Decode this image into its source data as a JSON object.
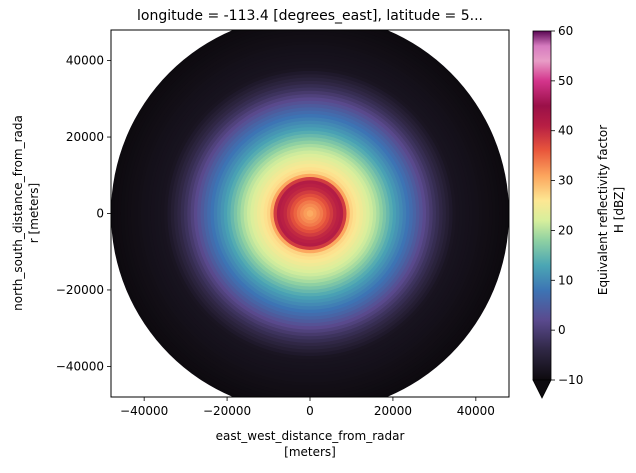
{
  "chart_data": {
    "type": "heatmap",
    "title": "longitude = -113.4 [degrees_east], latitude = 5...",
    "xlabel_line1": "east_west_distance_from_radar",
    "xlabel_line2": "[meters]",
    "ylabel_line1": "north_south_distance_from_rada",
    "ylabel_line2": "r [meters]",
    "xlim": [
      -48000,
      48000
    ],
    "ylim": [
      -48000,
      48000
    ],
    "xticks": [
      -40000,
      -20000,
      0,
      20000,
      40000
    ],
    "xtick_labels": [
      "−40000",
      "−20000",
      "0",
      "20000",
      "40000"
    ],
    "yticks": [
      -40000,
      -20000,
      0,
      20000,
      40000
    ],
    "ytick_labels": [
      "−40000",
      "−20000",
      "0",
      "20000",
      "40000"
    ],
    "grid": false,
    "radar_range_m": 48000,
    "field": {
      "description": "approximate reflectivity field (dBZ) sampled on polar rings",
      "rings": [
        {
          "r_m": 0,
          "dbz": 30
        },
        {
          "r_m": 3000,
          "dbz": 34
        },
        {
          "r_m": 6000,
          "dbz": 40
        },
        {
          "r_m": 8000,
          "dbz": 42
        },
        {
          "r_m": 9500,
          "dbz": 28
        },
        {
          "r_m": 12000,
          "dbz": 25
        },
        {
          "r_m": 16000,
          "dbz": 20
        },
        {
          "r_m": 20000,
          "dbz": 13
        },
        {
          "r_m": 25000,
          "dbz": 6
        },
        {
          "r_m": 30000,
          "dbz": -2
        },
        {
          "r_m": 35000,
          "dbz": -8
        },
        {
          "r_m": 48000,
          "dbz": -10
        }
      ]
    },
    "colorbar": {
      "label_line1": "Equivalent reflectivity factor",
      "label_line2": "H [dBZ]",
      "colormap": "spectral-reversed",
      "vmin": -10,
      "vmax": 60,
      "ticks": [
        -10,
        0,
        10,
        20,
        30,
        40,
        50,
        60
      ],
      "tick_labels": [
        "−10",
        "0",
        "10",
        "20",
        "30",
        "40",
        "50",
        "60"
      ],
      "extend": "min",
      "stops": [
        {
          "value": -10,
          "color": "#0d0a0e"
        },
        {
          "value": -4,
          "color": "#2f2744"
        },
        {
          "value": 2,
          "color": "#5a4a8e"
        },
        {
          "value": 8,
          "color": "#3d74b4"
        },
        {
          "value": 13,
          "color": "#4ba6b4"
        },
        {
          "value": 18,
          "color": "#8fd1a2"
        },
        {
          "value": 22,
          "color": "#d7ef9c"
        },
        {
          "value": 26,
          "color": "#fde793"
        },
        {
          "value": 31,
          "color": "#fca55d"
        },
        {
          "value": 36,
          "color": "#e9573c"
        },
        {
          "value": 41,
          "color": "#b71e44"
        },
        {
          "value": 45,
          "color": "#9a1048"
        },
        {
          "value": 50,
          "color": "#d4358c"
        },
        {
          "value": 54,
          "color": "#e89dc6"
        },
        {
          "value": 57,
          "color": "#d67bc0"
        },
        {
          "value": 60,
          "color": "#5a0653"
        }
      ]
    }
  }
}
